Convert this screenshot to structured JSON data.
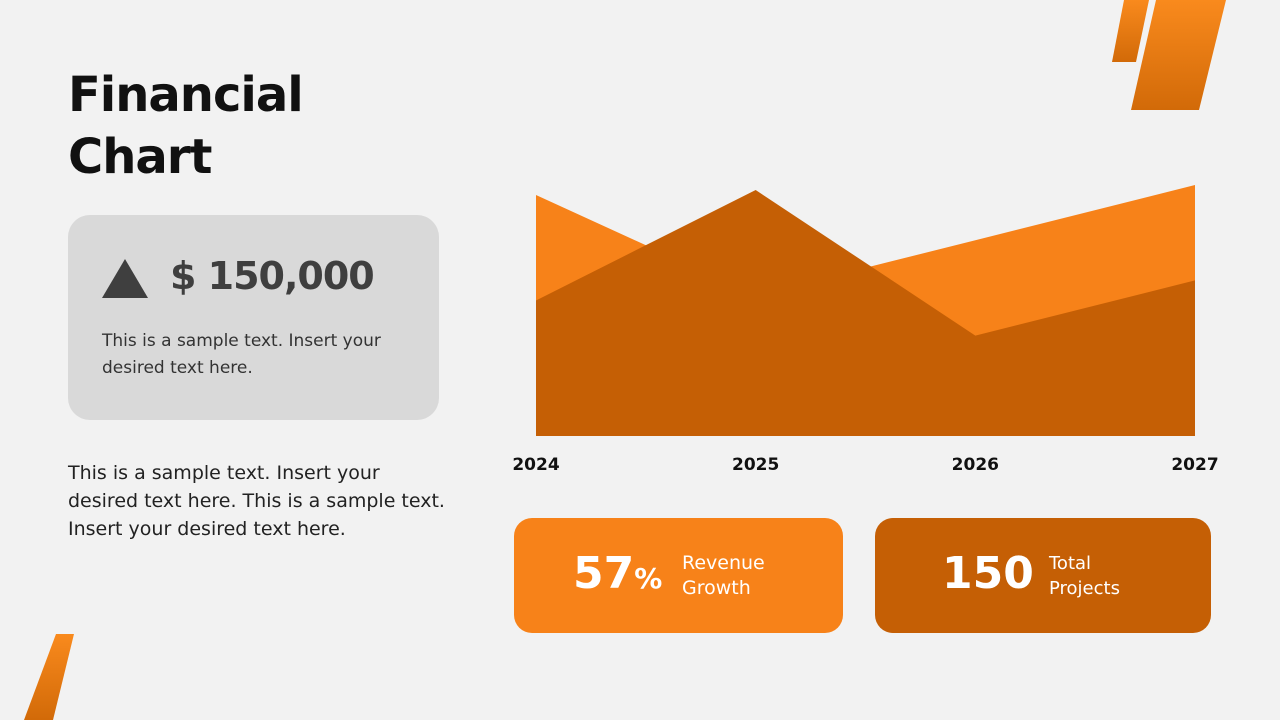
{
  "title_lines": [
    "Financial",
    "Chart"
  ],
  "highlight": {
    "icon": "triangle-up-icon",
    "amount": "$ 150,000",
    "text": "This is a sample text. Insert your desired text here."
  },
  "body_text": "This is a sample text. Insert your desired text here. This is a sample text. Insert your desired text here.",
  "colors": {
    "light_orange": "#f78219",
    "dark_orange": "#c55f05",
    "card_gray": "#d9d9d9"
  },
  "kpis": [
    {
      "value": "57",
      "unit": "%",
      "label": "Revenue Growth"
    },
    {
      "value": "150",
      "unit": "",
      "label": "Total Projects"
    }
  ],
  "chart_data": {
    "type": "area",
    "categories": [
      "2024",
      "2025",
      "2026",
      "2027"
    ],
    "series": [
      {
        "values": [
          96,
          56,
          78,
          100
        ],
        "color": "#f78219"
      },
      {
        "values": [
          54,
          98,
          40,
          62
        ],
        "color": "#c55f05"
      }
    ],
    "ylim": [
      0,
      100
    ],
    "grid": false,
    "y_axis_visible": false
  }
}
